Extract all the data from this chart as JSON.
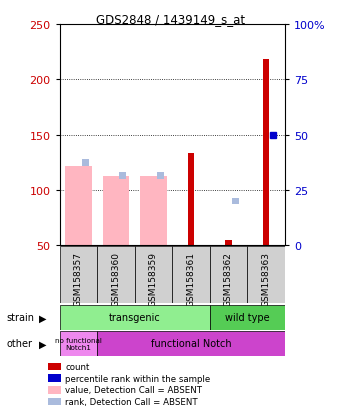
{
  "title": "GDS2848 / 1439149_s_at",
  "samples": [
    "GSM158357",
    "GSM158360",
    "GSM158359",
    "GSM158361",
    "GSM158362",
    "GSM158363"
  ],
  "ylim_left": [
    50,
    250
  ],
  "ylim_right": [
    0,
    100
  ],
  "yticks_left": [
    50,
    100,
    150,
    200,
    250
  ],
  "yticks_right": [
    0,
    25,
    50,
    75,
    100
  ],
  "ytick_labels_right": [
    "0",
    "25",
    "50",
    "75",
    "100%"
  ],
  "count_values": [
    null,
    null,
    null,
    133,
    55,
    218
  ],
  "percentile_values": [
    null,
    null,
    null,
    null,
    null,
    150
  ],
  "value_absent": [
    122,
    113,
    113,
    null,
    null,
    null
  ],
  "rank_absent": [
    125,
    113,
    113,
    null,
    90,
    null
  ],
  "count_color": "#CC0000",
  "percentile_color": "#0000CC",
  "value_absent_color": "#FFB6C1",
  "rank_absent_color": "#AABBDD",
  "strain_transgenic_color": "#90EE90",
  "strain_wildtype_color": "#55CC55",
  "other_nofunc_color": "#EE88EE",
  "other_func_color": "#CC44CC",
  "label_color_left": "#CC0000",
  "label_color_right": "#0000CC",
  "bg_color": "#FFFFFF",
  "grid_color": "black"
}
